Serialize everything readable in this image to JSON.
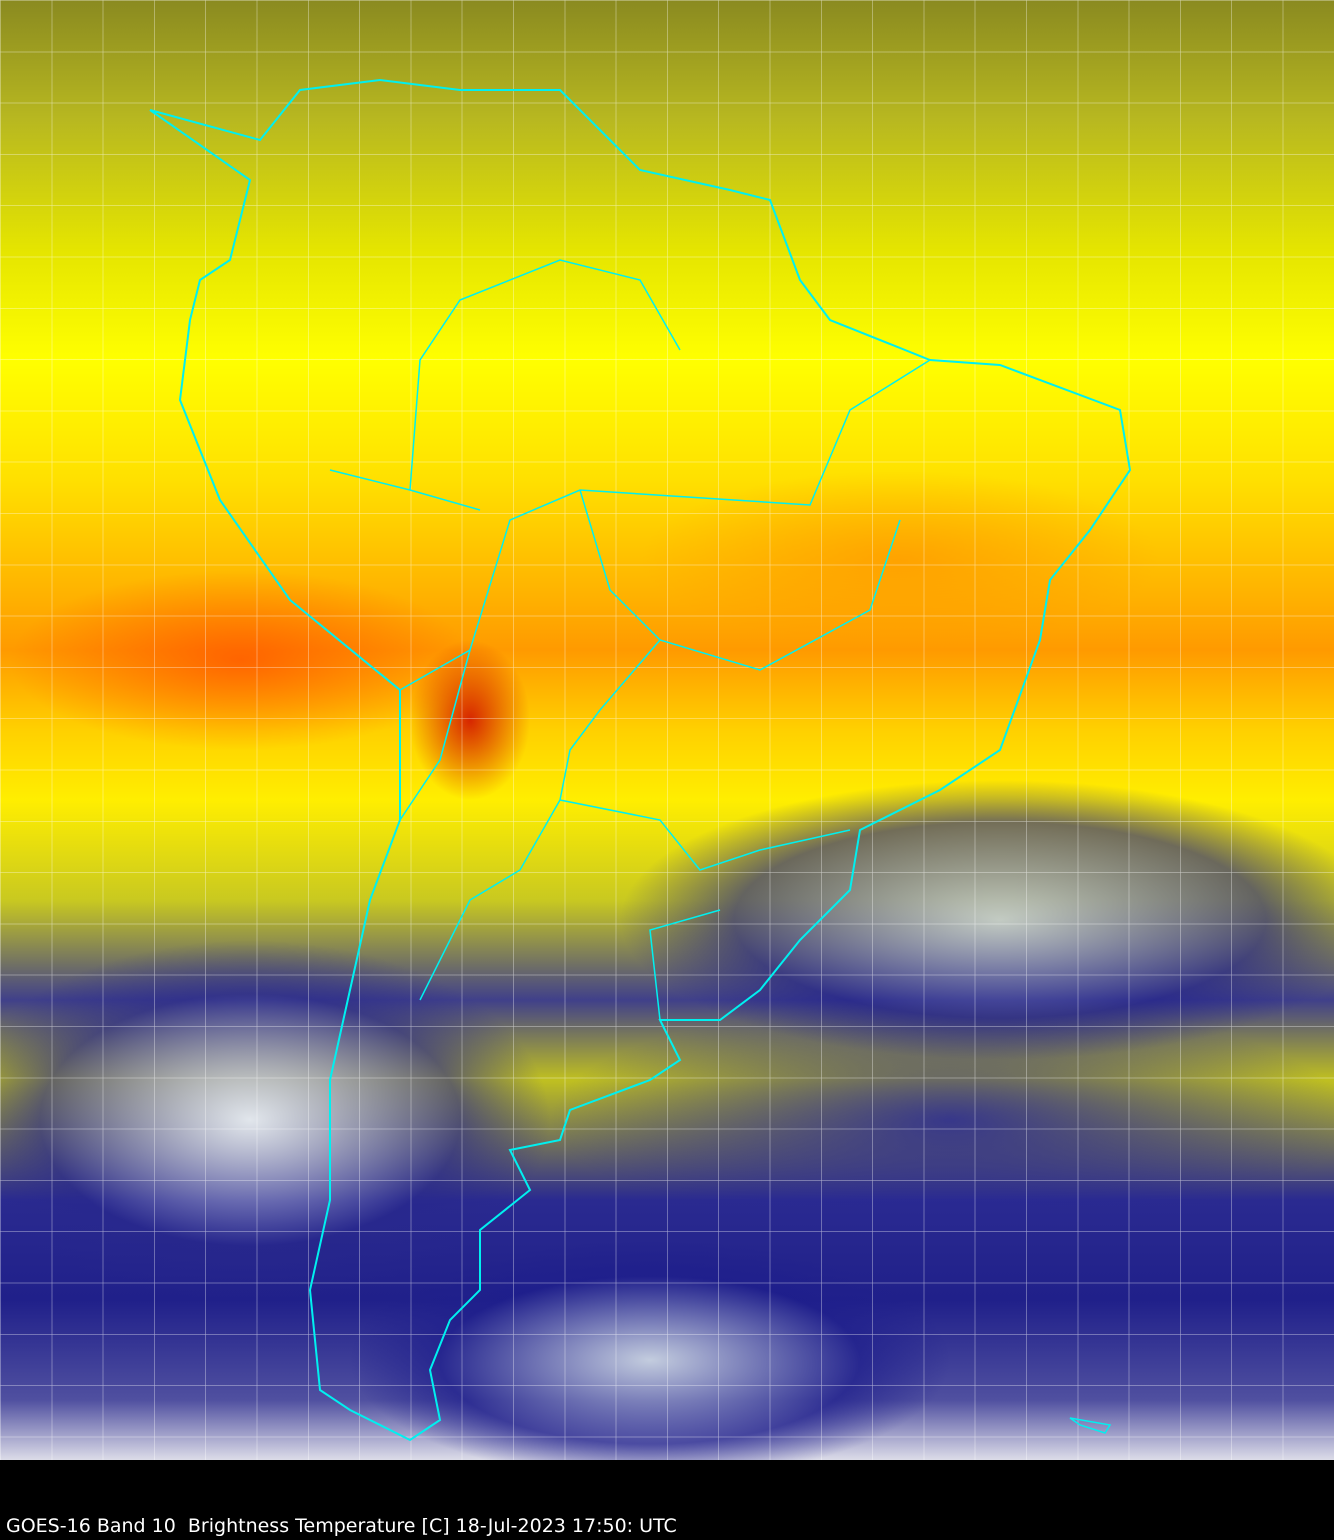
{
  "caption": "GOES-16 Band 10  Brightness Temperature [C] 18-Jul-2023 17:50: UTC",
  "colors": {
    "border_lines": "#00f0f0",
    "warm": "#ff3000",
    "mid": "#ffff00",
    "cold": "#20208a",
    "background": "#000000"
  }
}
